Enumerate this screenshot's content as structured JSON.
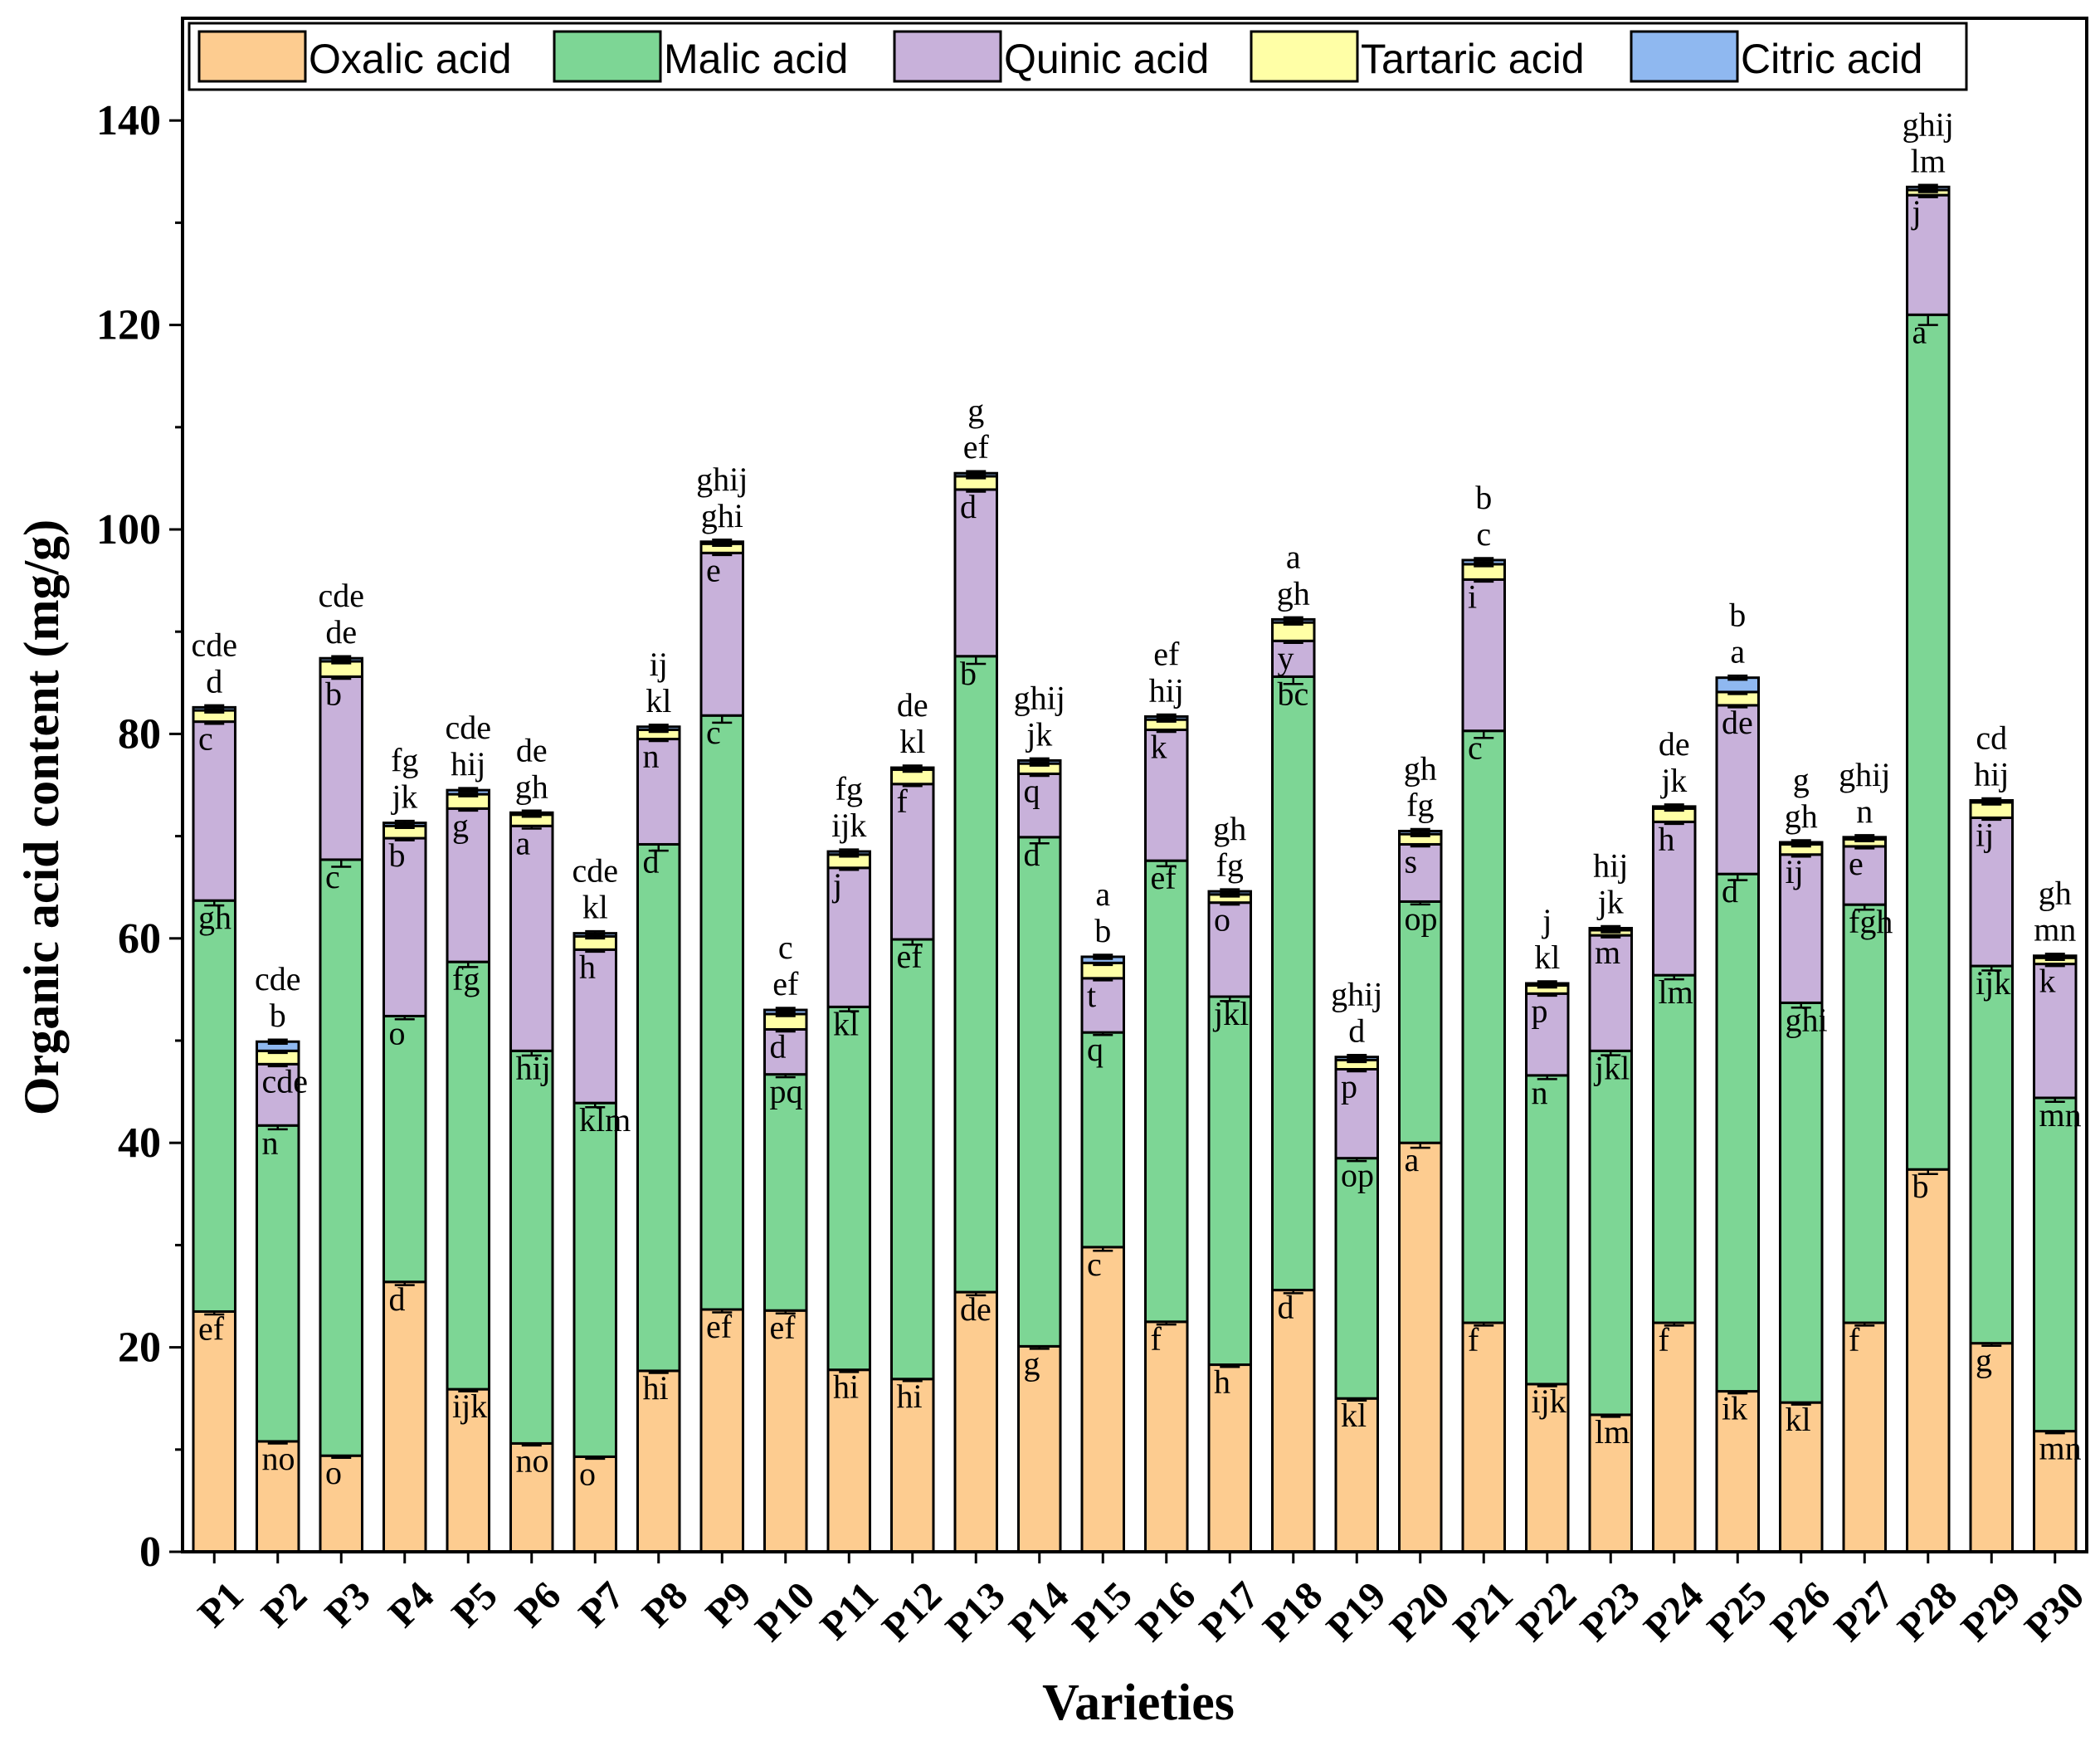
{
  "chart_data": {
    "type": "bar",
    "stacked": true,
    "xlabel": "Varieties",
    "ylabel": "Organic acid content (mg/g)",
    "ylim": [
      0,
      150
    ],
    "yticks": [
      0,
      20,
      40,
      60,
      80,
      100,
      120,
      140
    ],
    "ytick_labels": [
      "0",
      "20",
      "40",
      "60",
      "80",
      "100",
      "120",
      "140"
    ],
    "legend_position": "top",
    "categories": [
      "P1",
      "P2",
      "P3",
      "P4",
      "P5",
      "P6",
      "P7",
      "P8",
      "P9",
      "P10",
      "P11",
      "P12",
      "P13",
      "P14",
      "P15",
      "P16",
      "P17",
      "P18",
      "P19",
      "P20",
      "P21",
      "P22",
      "P23",
      "P24",
      "P25",
      "P26",
      "P27",
      "P28",
      "P29",
      "P30"
    ],
    "series": [
      {
        "name": "Oxalic acid",
        "color": "#FDCC90",
        "values": [
          23.5,
          10.8,
          9.4,
          26.4,
          15.9,
          10.6,
          9.3,
          17.7,
          23.7,
          23.6,
          17.8,
          16.9,
          25.4,
          20.1,
          29.8,
          22.5,
          18.3,
          25.6,
          15.0,
          40.0,
          22.4,
          16.4,
          13.4,
          22.4,
          15.7,
          14.6,
          22.4,
          37.4,
          20.4,
          11.8
        ],
        "letters": [
          "ef",
          "no",
          "o",
          "d",
          "ijk",
          "no",
          "o",
          "hi",
          "ef",
          "ef",
          "hi",
          "hi",
          "de",
          "g",
          "c",
          "f",
          "h",
          "d",
          "kl",
          "a",
          "f",
          "ijk",
          "lm",
          "f",
          "ik",
          "kl",
          "f",
          "b",
          "g",
          "mn"
        ]
      },
      {
        "name": "Malic acid",
        "color": "#7DD695",
        "values": [
          40.2,
          30.9,
          58.3,
          26.0,
          41.8,
          38.4,
          34.6,
          51.5,
          58.1,
          23.1,
          35.5,
          43.0,
          62.2,
          49.8,
          21.0,
          45.1,
          36.0,
          60.0,
          23.5,
          23.6,
          57.9,
          30.2,
          35.6,
          34.0,
          50.6,
          39.1,
          40.9,
          83.6,
          36.9,
          32.6
        ],
        "letters": [
          "gh",
          "n",
          "c",
          "o",
          "fg",
          "hij",
          "klm",
          "d",
          "c",
          "pq",
          "kl",
          "ef",
          "b",
          "d",
          "q",
          "ef",
          "jkl",
          "bc",
          "op",
          "op",
          "c",
          "n",
          "jkl",
          "lm",
          "d",
          "ghi",
          "fgh",
          "a",
          "ijk",
          "mn"
        ]
      },
      {
        "name": "Quinic acid",
        "color": "#C8B1DA",
        "values": [
          17.5,
          6.0,
          17.9,
          17.4,
          15.0,
          22.0,
          15.0,
          10.3,
          15.9,
          4.4,
          13.6,
          15.2,
          16.3,
          6.2,
          5.3,
          12.8,
          9.2,
          3.5,
          8.7,
          5.6,
          14.8,
          8.0,
          11.3,
          15.0,
          16.5,
          14.5,
          5.7,
          11.7,
          14.5,
          13.1
        ],
        "letters": [
          "c",
          "cde",
          "b",
          "b",
          "g",
          "a",
          "h",
          "n",
          "e",
          "d",
          "j",
          "f",
          "d",
          "q",
          "t",
          "k",
          "o",
          "y",
          "p",
          "s",
          "i",
          "p",
          "m",
          "h",
          "de",
          "ij",
          "e",
          "j",
          "ij",
          "k"
        ]
      },
      {
        "name": "Tartaric acid",
        "color": "#FFFFA6",
        "values": [
          1.1,
          1.3,
          1.5,
          1.2,
          1.4,
          1.1,
          1.3,
          0.9,
          0.9,
          1.5,
          1.3,
          1.4,
          1.3,
          1.0,
          1.5,
          1.0,
          0.8,
          1.8,
          0.9,
          1.0,
          1.5,
          0.8,
          0.5,
          1.3,
          1.3,
          1.0,
          0.7,
          0.5,
          1.5,
          0.6
        ],
        "letters": [
          "d",
          "b",
          "de",
          "jk",
          "hij",
          "gh",
          "kl",
          "kl",
          "ghi",
          "ef",
          "ijk",
          "kl",
          "ef",
          "jk",
          "b",
          "hij",
          "fg",
          "gh",
          "d",
          "fg",
          "c",
          "kl",
          "jk",
          "jk",
          "a",
          "gh",
          "n",
          "lm",
          "hij",
          "mn"
        ]
      },
      {
        "name": "Citric acid",
        "color": "#8FB8F0",
        "values": [
          0.3,
          0.9,
          0.3,
          0.3,
          0.4,
          0.2,
          0.3,
          0.3,
          0.2,
          0.4,
          0.3,
          0.2,
          0.3,
          0.3,
          0.6,
          0.3,
          0.3,
          0.3,
          0.3,
          0.3,
          0.4,
          0.2,
          0.2,
          0.2,
          1.4,
          0.2,
          0.2,
          0.3,
          0.2,
          0.2
        ],
        "letters": [
          "cde",
          "cde",
          "cde",
          "fg",
          "cde",
          "de",
          "cde",
          "ij",
          "ghij",
          "c",
          "fg",
          "de",
          "g",
          "ghij",
          "a",
          "ef",
          "gh",
          "a",
          "ghij",
          "gh",
          "b",
          "j",
          "hij",
          "de",
          "b",
          "g",
          "ghij",
          "ghij",
          "cd",
          "gh"
        ]
      }
    ]
  }
}
